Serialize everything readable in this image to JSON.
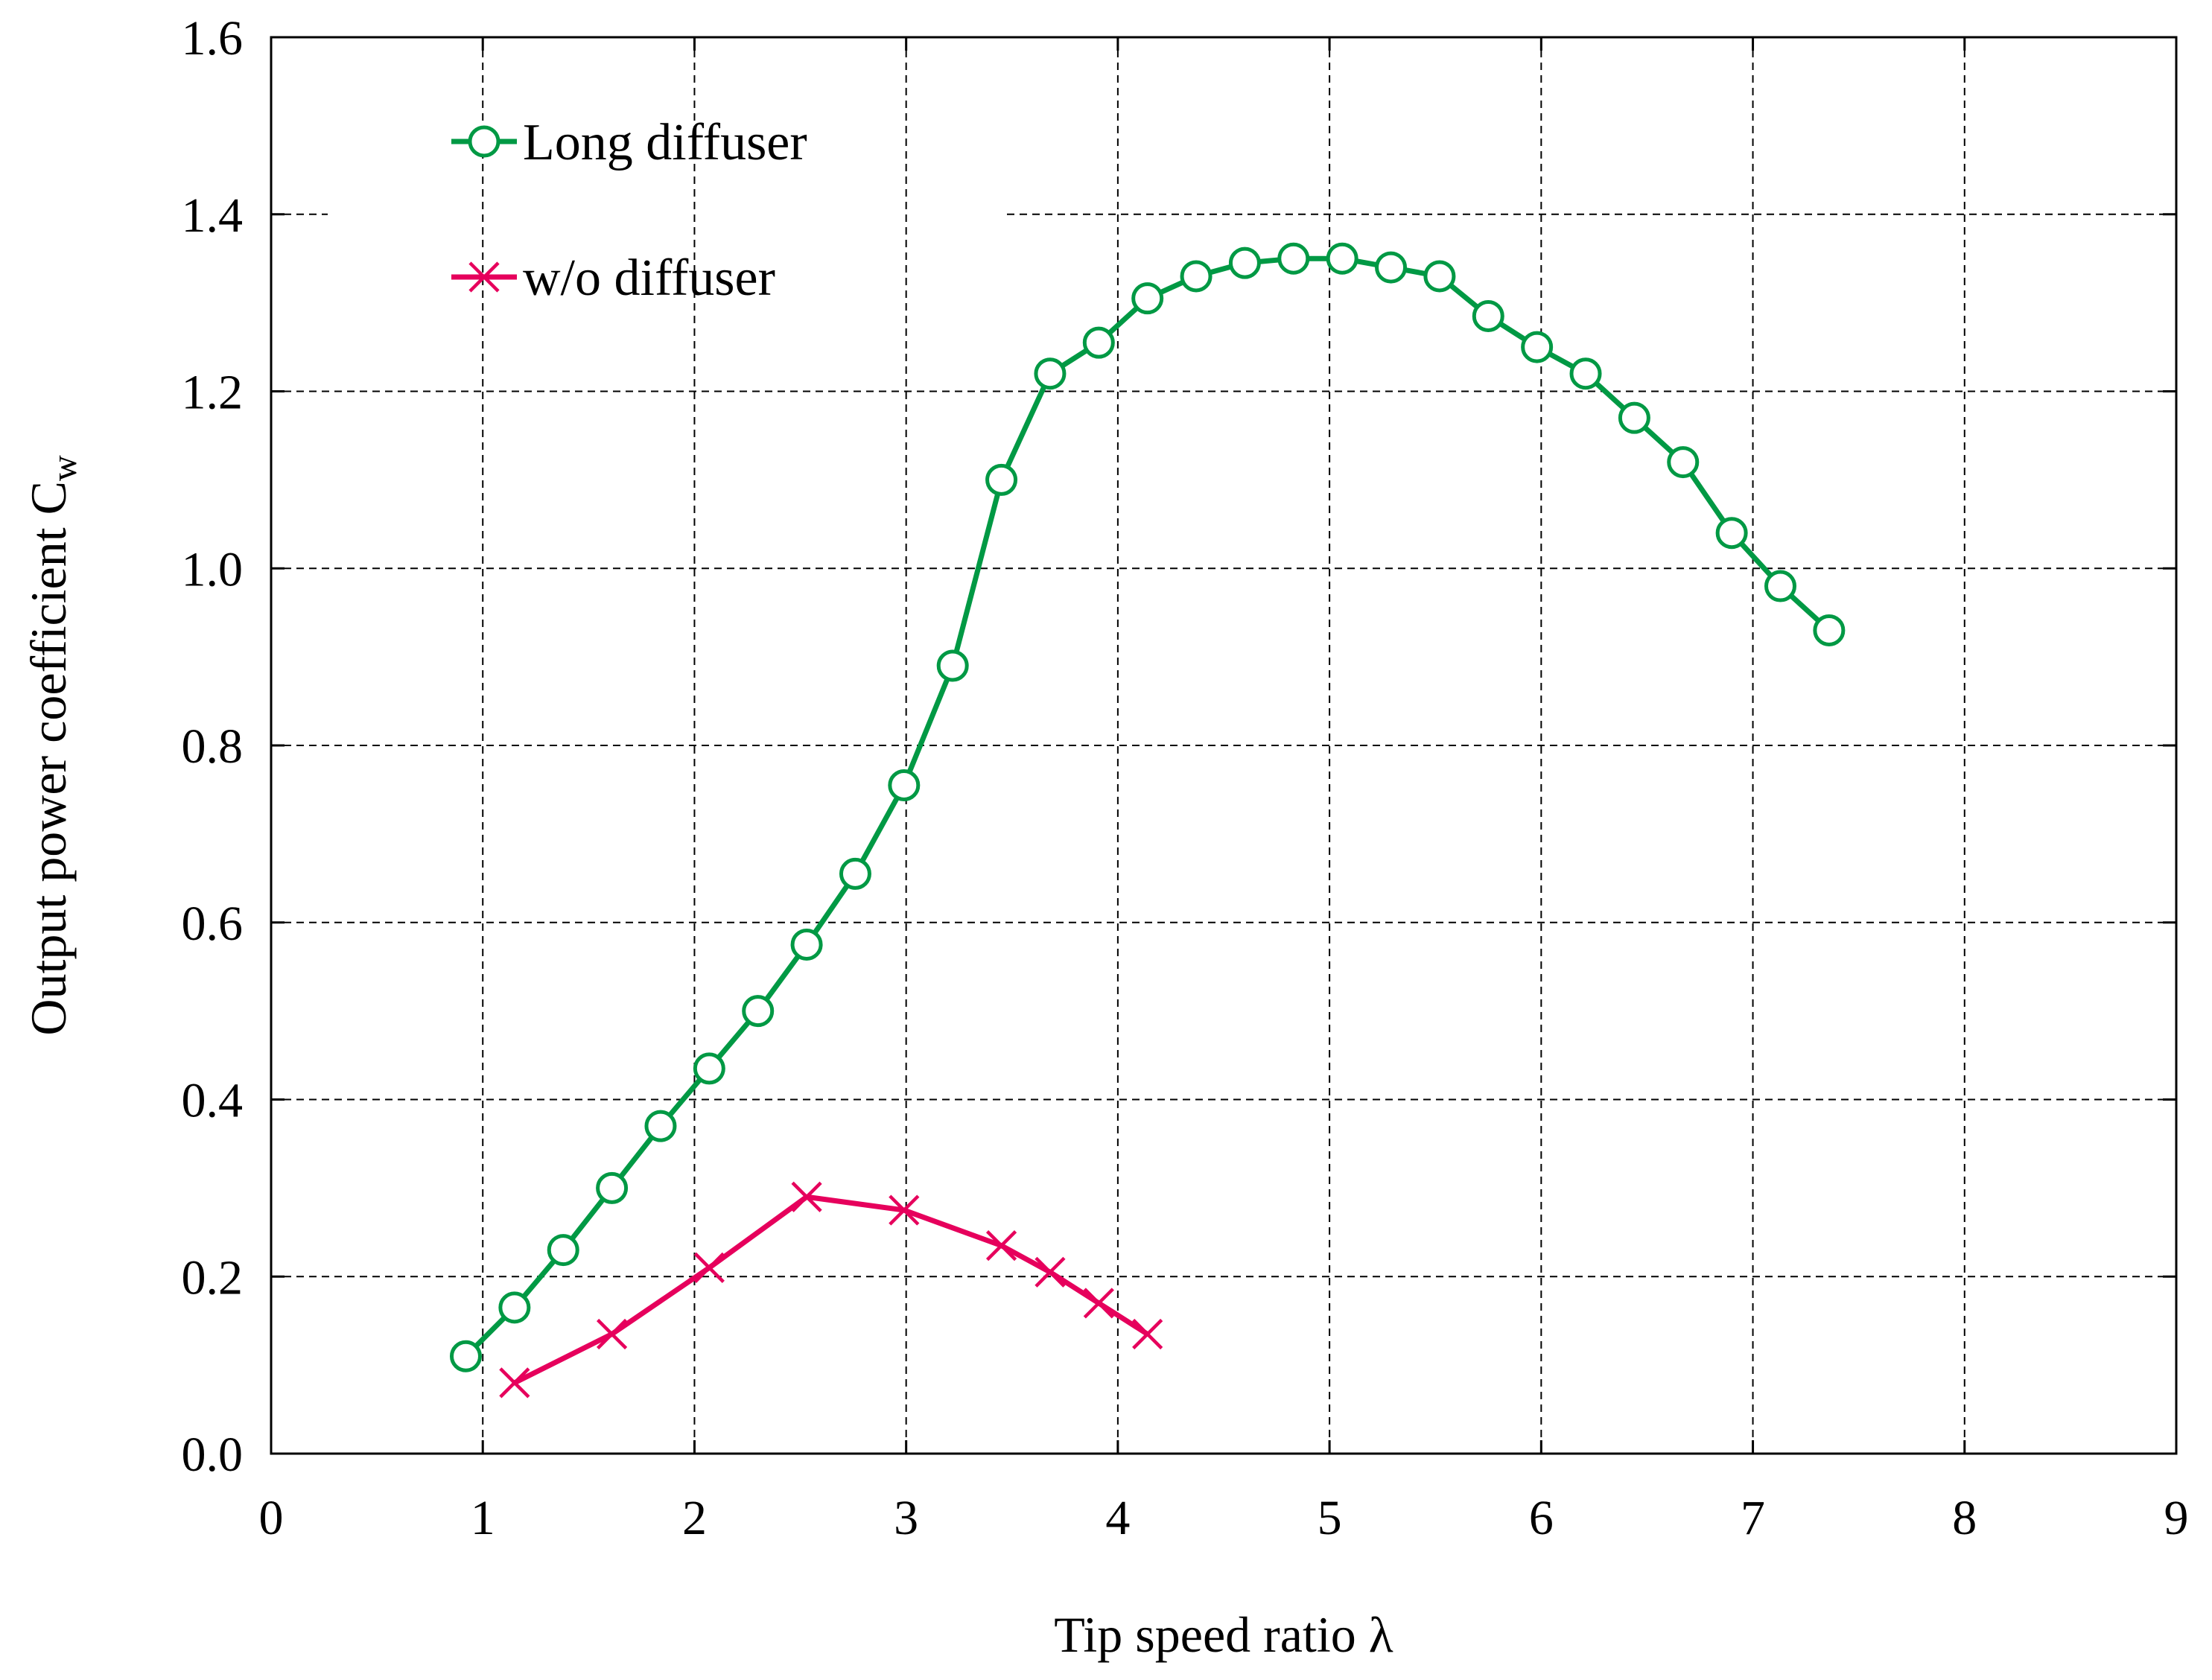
{
  "chart_data": {
    "type": "line",
    "xlabel": "Tip speed ratio λ",
    "ylabel": "Output power coefficient C",
    "ylabel_subscript": "w",
    "xlim": [
      0,
      9
    ],
    "ylim": [
      0,
      1.6
    ],
    "x_ticks": [
      "0",
      "1",
      "2",
      "3",
      "4",
      "5",
      "6",
      "7",
      "8",
      "9"
    ],
    "y_ticks": [
      "0.0",
      "0.2",
      "0.4",
      "0.6",
      "0.8",
      "1.0",
      "1.2",
      "1.4",
      "1.6"
    ],
    "grid": true,
    "legend_position": "top-left",
    "series": [
      {
        "name": "Long diffuser",
        "color": "#009944",
        "marker": "open-circle",
        "x": [
          0.92,
          1.15,
          1.38,
          1.61,
          1.84,
          2.07,
          2.3,
          2.53,
          2.76,
          2.99,
          3.22,
          3.45,
          3.68,
          3.91,
          4.14,
          4.37,
          4.6,
          4.83,
          5.06,
          5.29,
          5.52,
          5.75,
          5.98,
          6.21,
          6.44,
          6.67,
          6.9,
          7.13,
          7.36
        ],
        "y": [
          0.11,
          0.165,
          0.23,
          0.3,
          0.37,
          0.435,
          0.5,
          0.575,
          0.655,
          0.755,
          0.89,
          1.1,
          1.22,
          1.255,
          1.305,
          1.33,
          1.345,
          1.35,
          1.35,
          1.34,
          1.33,
          1.285,
          1.25,
          1.22,
          1.17,
          1.12,
          1.04,
          0.98,
          0.93
        ]
      },
      {
        "name": "w/o diffuser",
        "color": "#e6005c",
        "marker": "cross",
        "x": [
          1.15,
          1.61,
          2.07,
          2.53,
          2.99,
          3.45,
          3.68,
          3.91,
          4.14
        ],
        "y": [
          0.08,
          0.135,
          0.21,
          0.29,
          0.275,
          0.235,
          0.205,
          0.17,
          0.135
        ]
      }
    ]
  }
}
